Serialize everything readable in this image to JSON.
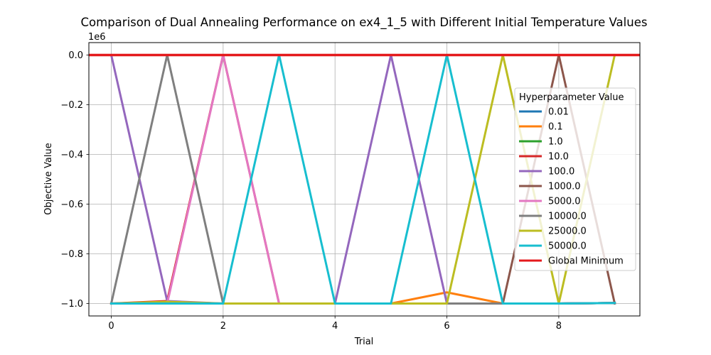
{
  "chart_data": {
    "type": "line",
    "title": "Comparison of Dual Annealing Performance on ex4_1_5 with Different Initial Temperature Values",
    "xlabel": "Trial",
    "ylabel": "Objective Value",
    "y_offset_label": "1e6",
    "xlim": [
      -0.4,
      9.45
    ],
    "ylim": [
      -1.05,
      0.05
    ],
    "y_scale_note": "values in units of 1e6",
    "grid": true,
    "x_ticks": [
      0,
      2,
      4,
      6,
      8
    ],
    "x_tick_labels": [
      "0",
      "2",
      "4",
      "6",
      "8"
    ],
    "y_ticks": [
      0.0,
      -0.2,
      -0.4,
      -0.6,
      -0.8,
      -1.0
    ],
    "y_tick_labels": [
      "0.0",
      "−0.2",
      "−0.4",
      "−0.6",
      "−0.8",
      "−1.0"
    ],
    "x": [
      0,
      1,
      2,
      3,
      4,
      5,
      6,
      7,
      8,
      9
    ],
    "legend": {
      "title": "Hyperparameter Value",
      "placement": "right"
    },
    "series": [
      {
        "name": "0.01",
        "color": "#1f77b4",
        "values": [
          -1.0,
          -1.0,
          -1.0,
          -1.0,
          -1.0,
          -1.0,
          -1.0,
          -1.0,
          -1.0,
          -0.998
        ]
      },
      {
        "name": "0.1",
        "color": "#ff7f0e",
        "values": [
          -1.0,
          -1.0,
          -1.0,
          -1.0,
          -1.0,
          -1.0,
          -0.955,
          -1.0,
          -1.0,
          -0.998
        ]
      },
      {
        "name": "1.0",
        "color": "#2ca02c",
        "values": [
          -1.0,
          -1.0,
          -1.0,
          -1.0,
          -1.0,
          -1.0,
          -1.0,
          -1.0,
          -1.0,
          -0.998
        ]
      },
      {
        "name": "10.0",
        "color": "#d62728",
        "values": [
          -1.0,
          -0.99,
          0.0,
          -1.0,
          -1.0,
          -1.0,
          -1.0,
          -1.0,
          -1.0,
          -0.998
        ]
      },
      {
        "name": "100.0",
        "color": "#9467bd",
        "values": [
          0.0,
          -0.99,
          -1.0,
          -1.0,
          -1.0,
          0.0,
          -1.0,
          -1.0,
          -1.0,
          -0.998
        ]
      },
      {
        "name": "1000.0",
        "color": "#8c564b",
        "values": [
          -1.0,
          -1.0,
          -1.0,
          -1.0,
          -1.0,
          -1.0,
          -1.0,
          -1.0,
          0.0,
          -1.0
        ]
      },
      {
        "name": "5000.0",
        "color": "#e377c2",
        "values": [
          -1.0,
          -1.0,
          0.0,
          -1.0,
          -1.0,
          -1.0,
          -1.0,
          -1.0,
          -1.0,
          -0.998
        ]
      },
      {
        "name": "10000.0",
        "color": "#7f7f7f",
        "values": [
          -1.0,
          0.0,
          -1.0,
          -1.0,
          -1.0,
          -1.0,
          -1.0,
          -1.0,
          -1.0,
          -0.998
        ]
      },
      {
        "name": "25000.0",
        "color": "#bcbd22",
        "values": [
          -1.0,
          -0.993,
          -1.0,
          -1.0,
          -1.0,
          -1.0,
          -1.0,
          0.0,
          -1.0,
          0.0
        ]
      },
      {
        "name": "50000.0",
        "color": "#17becf",
        "values": [
          -1.0,
          -1.0,
          -1.0,
          0.0,
          -1.0,
          -1.0,
          0.0,
          -1.0,
          -1.0,
          -0.998
        ]
      }
    ],
    "reference_line": {
      "name": "Global Minimum",
      "color": "#e41a1c",
      "value": 0.0
    }
  }
}
